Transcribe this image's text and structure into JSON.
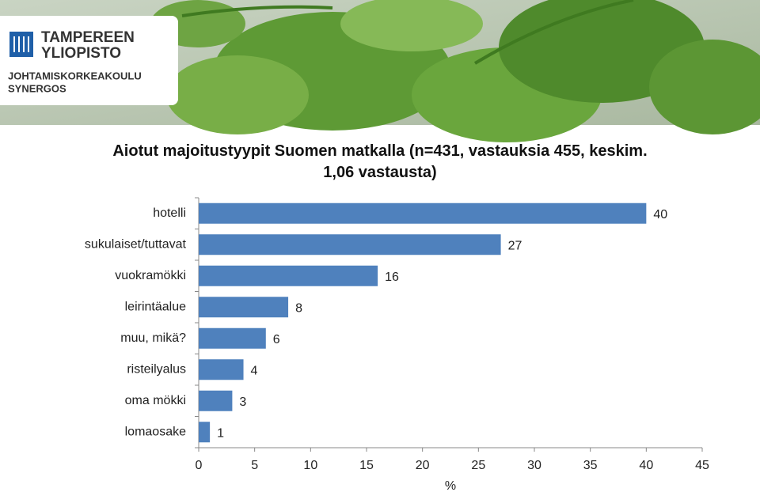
{
  "logo": {
    "name_line1": "TAMPEREEN",
    "name_line2": "YLIOPISTO",
    "unit_line1": "JOHTAMISKORKEAKOULU",
    "unit_line2": "SYNERGOS"
  },
  "chart_data": {
    "type": "bar",
    "orientation": "horizontal",
    "title": "Aiotut majoitustyypit Suomen matkalla (n=431, vastauksia 455, keskim. 1,06 vastausta)",
    "categories": [
      "hotelli",
      "sukulaiset/tuttavat",
      "vuokramökki",
      "leirintäalue",
      "muu, mikä?",
      "risteilyalus",
      "oma mökki",
      "lomaosake"
    ],
    "values": [
      40,
      27,
      16,
      8,
      6,
      4,
      3,
      1
    ],
    "color": "#4f81bd",
    "xlabel": "%",
    "xlim": [
      0,
      45
    ],
    "xticks": [
      0,
      5,
      10,
      15,
      20,
      25,
      30,
      35,
      40,
      45
    ],
    "grid": false
  }
}
